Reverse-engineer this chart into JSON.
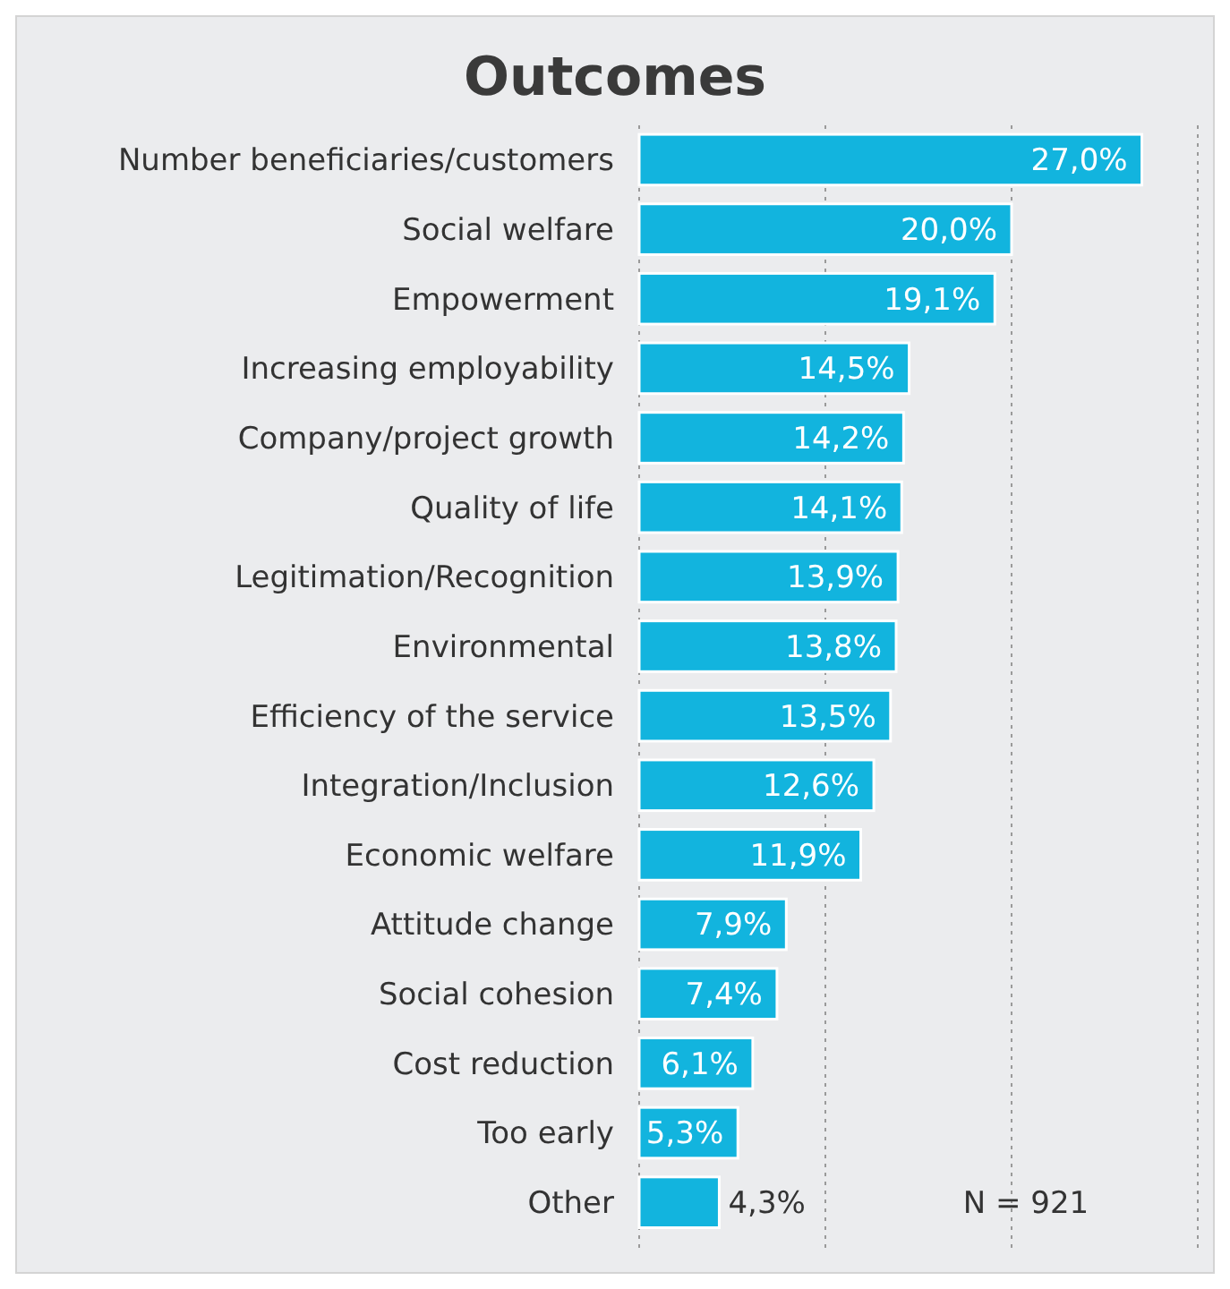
{
  "chart_data": {
    "type": "bar",
    "orientation": "horizontal",
    "title": "Outcomes",
    "categories": [
      "Number beneficiaries/customers",
      "Social welfare",
      "Empowerment",
      "Increasing employability",
      "Company/project growth",
      "Quality of life",
      "Legitimation/Recognition",
      "Environmental",
      "Efficiency of the service",
      "Integration/Inclusion",
      "Economic welfare",
      "Attitude change",
      "Social cohesion",
      "Cost reduction",
      "Too early",
      "Other"
    ],
    "values": [
      27.0,
      20.0,
      19.1,
      14.5,
      14.2,
      14.1,
      13.9,
      13.8,
      13.5,
      12.6,
      11.9,
      7.9,
      7.4,
      6.1,
      5.3,
      4.3
    ],
    "value_labels": [
      "27,0%",
      "20,0%",
      "19,1%",
      "14,5%",
      "14,2%",
      "14,1%",
      "13,9%",
      "13,8%",
      "13,5%",
      "12,6%",
      "11,9%",
      "7,9%",
      "7,4%",
      "6,1%",
      "5,3%",
      "4,3%"
    ],
    "color": "#12b4de",
    "xlim": [
      0,
      30
    ],
    "xticks": [
      {
        "value": 0,
        "label": null
      },
      {
        "value": 10,
        "label": null
      },
      {
        "value": 20,
        "label": null
      },
      {
        "value": 30,
        "label": null
      }
    ],
    "tick_labels": "y",
    "grid": "x",
    "annotations": [
      "N = 921"
    ]
  }
}
